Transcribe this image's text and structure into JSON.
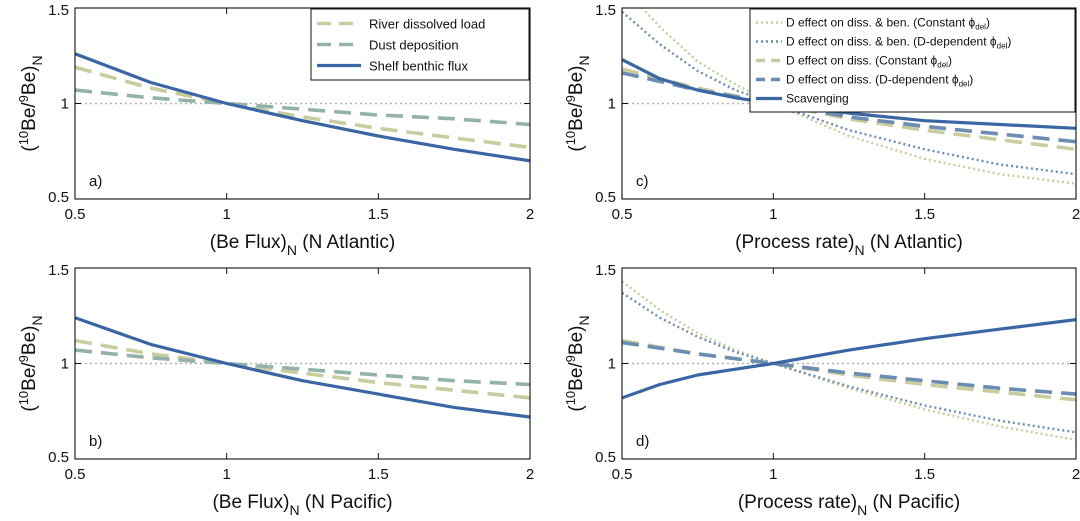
{
  "colors": {
    "tan": "#c9cc9e",
    "sage": "#93b2aa",
    "blue": "#3a66a4",
    "slate": "#6c8db3",
    "ref": "#b3b3b3"
  },
  "chart_data": [
    {
      "type": "line",
      "panel_label": "a)",
      "xlabel_main": "(Be Flux)",
      "xlabel_sub": "N",
      "xlabel_tail": " (N Atlantic)",
      "ylabel_sup": "10",
      "ylabel_mid": "Be/",
      "ylabel_sup2": "9",
      "ylabel_end": "Be)",
      "ylabel_sub": "N",
      "xlim": [
        0.5,
        2
      ],
      "ylim": [
        0.5,
        1.5
      ],
      "xticks": [
        "0.5",
        "1",
        "1.5",
        "2"
      ],
      "yticks": [
        "0.5",
        "1",
        "1.5"
      ],
      "reference_line": 1,
      "legend": {
        "position": "top-right",
        "entries": [
          "River dissolved load",
          "Dust deposition",
          "Shelf benthic flux"
        ]
      },
      "series": [
        {
          "name": "River dissolved load",
          "style": "dashed",
          "color_key": "tan",
          "x": [
            0.5,
            0.75,
            1,
            1.25,
            1.5,
            1.75,
            2
          ],
          "y": [
            1.19,
            1.08,
            1.0,
            0.93,
            0.87,
            0.82,
            0.77
          ]
        },
        {
          "name": "Dust deposition",
          "style": "dashed",
          "color_key": "sage",
          "x": [
            0.5,
            0.75,
            1,
            1.25,
            1.5,
            1.75,
            2
          ],
          "y": [
            1.07,
            1.03,
            1.0,
            0.97,
            0.94,
            0.92,
            0.89
          ]
        },
        {
          "name": "Shelf benthic flux",
          "style": "solid",
          "color_key": "blue",
          "x": [
            0.5,
            0.75,
            1,
            1.25,
            1.5,
            1.75,
            2
          ],
          "y": [
            1.26,
            1.11,
            1.0,
            0.91,
            0.83,
            0.76,
            0.7
          ]
        }
      ]
    },
    {
      "type": "line",
      "panel_label": "c)",
      "xlabel_main": "(Process rate)",
      "xlabel_sub": "N",
      "xlabel_tail": " (N Atlantic)",
      "ylabel_sup": "10",
      "ylabel_mid": "Be/",
      "ylabel_sup2": "9",
      "ylabel_end": "Be)",
      "ylabel_sub": "N",
      "xlim": [
        0.5,
        2
      ],
      "ylim": [
        0.5,
        1.5
      ],
      "xticks": [
        "0.5",
        "1",
        "1.5",
        "2"
      ],
      "yticks": [
        "0.5",
        "1",
        "1.5"
      ],
      "reference_line": 1,
      "legend": {
        "position": "top-right",
        "entries": [
          {
            "text": "D effect on diss. & ben. (Constant ",
            "sym": "ϕ",
            "sub": "del",
            "tail": ")"
          },
          {
            "text": "D effect on diss. & ben. (D-dependent ",
            "sym": "ϕ",
            "sub": "del",
            "tail": ")"
          },
          {
            "text": "D effect on diss. (Constant ",
            "sym": "ϕ",
            "sub": "del",
            "tail": ")"
          },
          {
            "text": "D effect on diss. (D-dependent ",
            "sym": "ϕ",
            "sub": "del",
            "tail": ")"
          },
          {
            "text": "Scavenging",
            "sym": "",
            "sub": "",
            "tail": ""
          }
        ]
      },
      "series": [
        {
          "name": "D effect on diss. & ben. (Constant φdel)",
          "style": "dotted",
          "color_key": "tan",
          "x": [
            0.5,
            0.625,
            0.75,
            0.875,
            1,
            1.25,
            1.5,
            1.75,
            2
          ],
          "y": [
            1.62,
            1.4,
            1.22,
            1.1,
            1.0,
            0.83,
            0.71,
            0.63,
            0.58
          ]
        },
        {
          "name": "D effect on diss. & ben. (D-dependent φdel)",
          "style": "dotted",
          "color_key": "slate",
          "x": [
            0.5,
            0.625,
            0.75,
            0.875,
            1,
            1.25,
            1.5,
            1.75,
            2
          ],
          "y": [
            1.48,
            1.31,
            1.17,
            1.07,
            1.0,
            0.86,
            0.76,
            0.68,
            0.63
          ]
        },
        {
          "name": "D effect on diss. (Constant φdel)",
          "style": "dashed",
          "color_key": "tan",
          "x": [
            0.5,
            0.75,
            1,
            1.25,
            1.5,
            1.75,
            2
          ],
          "y": [
            1.18,
            1.08,
            1.0,
            0.92,
            0.86,
            0.81,
            0.76
          ]
        },
        {
          "name": "D effect on diss. (D-dependent φdel)",
          "style": "dashed",
          "color_key": "slate",
          "x": [
            0.5,
            0.75,
            1,
            1.25,
            1.5,
            1.75,
            2
          ],
          "y": [
            1.16,
            1.07,
            1.0,
            0.93,
            0.88,
            0.84,
            0.8
          ]
        },
        {
          "name": "Scavenging",
          "style": "solid",
          "color_key": "blue",
          "x": [
            0.5,
            0.625,
            0.75,
            0.875,
            1,
            1.25,
            1.5,
            1.75,
            2
          ],
          "y": [
            1.23,
            1.13,
            1.07,
            1.03,
            1.0,
            0.95,
            0.91,
            0.89,
            0.87
          ]
        }
      ]
    },
    {
      "type": "line",
      "panel_label": "b)",
      "xlabel_main": "(Be Flux)",
      "xlabel_sub": "N",
      "xlabel_tail": " (N Pacific)",
      "ylabel_sup": "10",
      "ylabel_mid": "Be/",
      "ylabel_sup2": "9",
      "ylabel_end": "Be)",
      "ylabel_sub": "N",
      "xlim": [
        0.5,
        2
      ],
      "ylim": [
        0.5,
        1.5
      ],
      "xticks": [
        "0.5",
        "1",
        "1.5",
        "2"
      ],
      "yticks": [
        "0.5",
        "1",
        "1.5"
      ],
      "reference_line": 1,
      "series": [
        {
          "name": "River dissolved load",
          "style": "dashed",
          "color_key": "tan",
          "x": [
            0.5,
            0.75,
            1,
            1.25,
            1.5,
            1.75,
            2
          ],
          "y": [
            1.12,
            1.05,
            1.0,
            0.95,
            0.9,
            0.86,
            0.82
          ]
        },
        {
          "name": "Dust deposition",
          "style": "dashed",
          "color_key": "sage",
          "x": [
            0.5,
            0.75,
            1,
            1.25,
            1.5,
            1.75,
            2
          ],
          "y": [
            1.07,
            1.03,
            1.0,
            0.97,
            0.94,
            0.91,
            0.89
          ]
        },
        {
          "name": "Shelf benthic flux",
          "style": "solid",
          "color_key": "blue",
          "x": [
            0.5,
            0.75,
            1,
            1.25,
            1.5,
            1.75,
            2
          ],
          "y": [
            1.24,
            1.1,
            1.0,
            0.91,
            0.84,
            0.77,
            0.72
          ]
        }
      ]
    },
    {
      "type": "line",
      "panel_label": "d)",
      "xlabel_main": "(Process rate)",
      "xlabel_sub": "N",
      "xlabel_tail": " (N Pacific)",
      "ylabel_sup": "10",
      "ylabel_mid": "Be/",
      "ylabel_sup2": "9",
      "ylabel_end": "Be)",
      "ylabel_sub": "N",
      "xlim": [
        0.5,
        2
      ],
      "ylim": [
        0.5,
        1.5
      ],
      "xticks": [
        "0.5",
        "1",
        "1.5",
        "2"
      ],
      "yticks": [
        "0.5",
        "1",
        "1.5"
      ],
      "reference_line": 1,
      "series": [
        {
          "name": "D effect on diss. & ben. (Constant φdel)",
          "style": "dotted",
          "color_key": "tan",
          "x": [
            0.5,
            0.625,
            0.75,
            0.875,
            1,
            1.25,
            1.5,
            1.75,
            2
          ],
          "y": [
            1.43,
            1.28,
            1.16,
            1.07,
            1.0,
            0.87,
            0.76,
            0.67,
            0.6
          ]
        },
        {
          "name": "D effect on diss. & ben. (D-dependent φdel)",
          "style": "dotted",
          "color_key": "slate",
          "x": [
            0.5,
            0.625,
            0.75,
            0.875,
            1,
            1.25,
            1.5,
            1.75,
            2
          ],
          "y": [
            1.37,
            1.24,
            1.14,
            1.06,
            1.0,
            0.88,
            0.78,
            0.7,
            0.64
          ]
        },
        {
          "name": "D effect on diss. (Constant φdel)",
          "style": "dashed",
          "color_key": "tan",
          "x": [
            0.5,
            0.75,
            1,
            1.25,
            1.5,
            1.75,
            2
          ],
          "y": [
            1.12,
            1.05,
            1.0,
            0.94,
            0.89,
            0.85,
            0.81
          ]
        },
        {
          "name": "D effect on diss. (D-dependent φdel)",
          "style": "dashed",
          "color_key": "slate",
          "x": [
            0.5,
            0.75,
            1,
            1.25,
            1.5,
            1.75,
            2
          ],
          "y": [
            1.11,
            1.05,
            1.0,
            0.95,
            0.91,
            0.87,
            0.84
          ]
        },
        {
          "name": "Scavenging",
          "style": "solid",
          "color_key": "blue",
          "x": [
            0.5,
            0.625,
            0.75,
            0.875,
            1,
            1.25,
            1.5,
            1.75,
            2
          ],
          "y": [
            0.82,
            0.89,
            0.94,
            0.97,
            1.0,
            1.07,
            1.13,
            1.18,
            1.23
          ]
        }
      ]
    }
  ]
}
